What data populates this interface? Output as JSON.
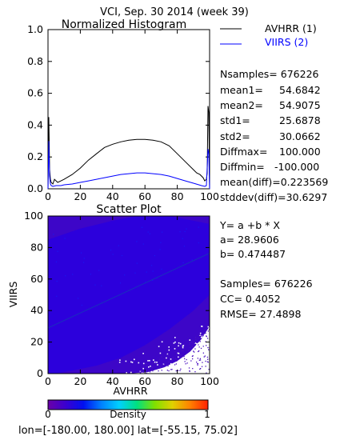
{
  "header": {
    "title": "VCI,  Sep. 30 2014 (week 39)"
  },
  "chart_data": [
    {
      "type": "line",
      "title": "Normalized Histogram",
      "xlim": [
        0,
        100
      ],
      "ylim": [
        0,
        1.0
      ],
      "x_ticks": [
        "0",
        "20",
        "40",
        "60",
        "80",
        "100"
      ],
      "y_ticks": [
        "0.0",
        "0.2",
        "0.4",
        "0.6",
        "0.8",
        "1.0"
      ],
      "legend_position": "right",
      "series": [
        {
          "name": "AVHRR (1)",
          "color": "#000000",
          "x": [
            0,
            0.5,
            1,
            1.5,
            2,
            3,
            4,
            6,
            8,
            10,
            15,
            20,
            25,
            30,
            35,
            40,
            45,
            50,
            55,
            60,
            65,
            70,
            75,
            80,
            85,
            90,
            92,
            94,
            96,
            97,
            98,
            98.5,
            99,
            99.5,
            100
          ],
          "y": [
            0.0,
            0.45,
            0.12,
            0.06,
            0.04,
            0.03,
            0.06,
            0.04,
            0.05,
            0.06,
            0.09,
            0.13,
            0.18,
            0.22,
            0.26,
            0.28,
            0.295,
            0.305,
            0.31,
            0.31,
            0.305,
            0.295,
            0.27,
            0.22,
            0.17,
            0.12,
            0.1,
            0.09,
            0.07,
            0.05,
            0.06,
            0.1,
            0.52,
            0.48,
            0.0
          ]
        },
        {
          "name": "VIIRS (2)",
          "color": "#0000ff",
          "x": [
            0,
            0.5,
            1,
            1.5,
            2,
            3,
            5,
            8,
            10,
            15,
            20,
            25,
            30,
            35,
            40,
            45,
            50,
            55,
            60,
            65,
            70,
            75,
            80,
            85,
            90,
            95,
            97,
            98,
            99,
            99.5,
            100
          ],
          "y": [
            0.0,
            0.3,
            0.08,
            0.03,
            0.02,
            0.015,
            0.02,
            0.02,
            0.025,
            0.03,
            0.04,
            0.05,
            0.06,
            0.07,
            0.08,
            0.09,
            0.095,
            0.1,
            0.1,
            0.095,
            0.09,
            0.08,
            0.065,
            0.05,
            0.035,
            0.02,
            0.015,
            0.02,
            0.25,
            0.22,
            0.0
          ]
        }
      ]
    },
    {
      "type": "heatmap",
      "title": "Scatter Plot",
      "xlabel": "AVHRR",
      "ylabel": "VIIRS",
      "xlim": [
        0,
        100
      ],
      "ylim": [
        0,
        100
      ],
      "x_ticks": [
        "0",
        "20",
        "40",
        "60",
        "80",
        "100"
      ],
      "y_ticks": [
        "0",
        "20",
        "40",
        "60",
        "80",
        "100"
      ],
      "fit_line": {
        "intercept": 28.9606,
        "slope": 0.474487,
        "color": "#1a2fbf"
      },
      "colorbar": {
        "label": "Density",
        "min_label": "0",
        "max_label": "1",
        "colors": [
          "#6a00a8",
          "#3a00d0",
          "#0010f0",
          "#0080ff",
          "#00d0ff",
          "#00e080",
          "#80e000",
          "#e0d000",
          "#ff8000",
          "#ff2000"
        ]
      }
    }
  ],
  "stats_hist": {
    "nsamples": "Nsamples= 676226",
    "mean1": "mean1=",
    "mean1_val": "54.6842",
    "mean2": "mean2=",
    "mean2_val": "54.9075",
    "std1": "std1=",
    "std1_val": "25.6878",
    "std2": "std2=",
    "std2_val": "30.0662",
    "diffmax": "Diffmax=",
    "diffmax_val": "100.000",
    "diffmin": "Diffmin=",
    "diffmin_val": "-100.000",
    "meandiff": "mean(diff)=0.223569",
    "stddev": "stddev(diff)=30.6297"
  },
  "stats_scatter": {
    "eq": "Y= a +b * X",
    "a": "a= 28.9606",
    "b": "b= 0.474487",
    "samples": "Samples= 676226",
    "cc": "CC=  0.4052",
    "rmse": "RMSE= 27.4898"
  },
  "footer": {
    "coords": "lon=[-180.00, 180.00] lat=[-55.15, 75.02]"
  }
}
